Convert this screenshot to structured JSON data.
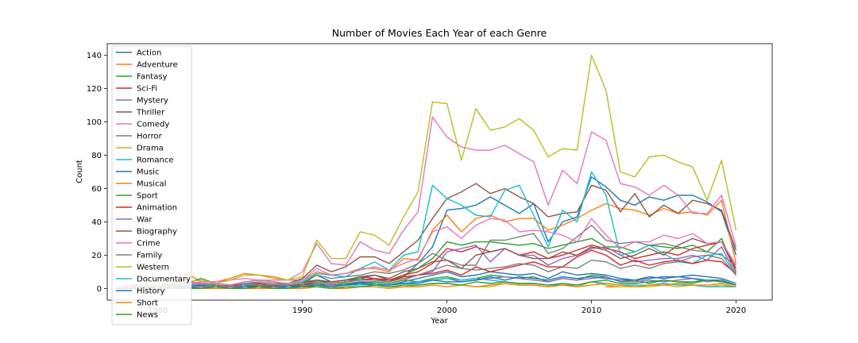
{
  "chart_data": {
    "type": "line",
    "title": "Number of Movies Each Year of each Genre",
    "xlabel": "Year",
    "ylabel": "Count",
    "xlim": [
      1976.5,
      2022.5
    ],
    "ylim": [
      -7,
      147
    ],
    "xticks": [
      1980,
      1990,
      2000,
      2010,
      2020
    ],
    "yticks": [
      0,
      20,
      40,
      60,
      80,
      100,
      120,
      140
    ],
    "legend_position": "top-left",
    "x": [
      1977,
      1978,
      1979,
      1980,
      1981,
      1982,
      1983,
      1984,
      1985,
      1986,
      1987,
      1988,
      1989,
      1990,
      1991,
      1992,
      1993,
      1994,
      1995,
      1996,
      1997,
      1998,
      1999,
      2000,
      2001,
      2002,
      2003,
      2004,
      2005,
      2006,
      2007,
      2008,
      2009,
      2010,
      2011,
      2012,
      2013,
      2014,
      2015,
      2016,
      2017,
      2018,
      2019,
      2020
    ],
    "series": [
      {
        "name": "Action",
        "color": "#1f77b4",
        "values": [
          0,
          1,
          1,
          1,
          1,
          3,
          2,
          2,
          1,
          2,
          3,
          2,
          2,
          3,
          8,
          4,
          5,
          6,
          8,
          5,
          7,
          15,
          25,
          47,
          48,
          50,
          55,
          50,
          45,
          51,
          28,
          40,
          43,
          67,
          61,
          53,
          50,
          55,
          53,
          56,
          56,
          52,
          46,
          20
        ]
      },
      {
        "name": "Adventure",
        "color": "#ff7f0e",
        "values": [
          0,
          2,
          1,
          2,
          2,
          9,
          4,
          4,
          6,
          9,
          8,
          7,
          5,
          5,
          10,
          8,
          9,
          12,
          12,
          10,
          18,
          17,
          35,
          44,
          34,
          42,
          44,
          40,
          42,
          42,
          35,
          38,
          42,
          47,
          51,
          48,
          47,
          44,
          48,
          45,
          46,
          44,
          53,
          15
        ]
      },
      {
        "name": "Fantasy",
        "color": "#2ca02c",
        "values": [
          0,
          0,
          1,
          2,
          1,
          3,
          6,
          3,
          2,
          3,
          3,
          2,
          3,
          4,
          5,
          3,
          4,
          6,
          5,
          4,
          8,
          12,
          18,
          28,
          26,
          28,
          28,
          27,
          26,
          27,
          24,
          26,
          28,
          30,
          25,
          25,
          22,
          26,
          25,
          24,
          26,
          22,
          30,
          10
        ]
      },
      {
        "name": "Sci-Fi",
        "color": "#d62728",
        "values": [
          0,
          1,
          0,
          1,
          1,
          2,
          3,
          2,
          1,
          2,
          3,
          2,
          2,
          3,
          5,
          4,
          5,
          7,
          6,
          5,
          8,
          10,
          15,
          24,
          22,
          25,
          22,
          24,
          20,
          22,
          18,
          20,
          23,
          26,
          24,
          22,
          18,
          20,
          22,
          20,
          24,
          26,
          28,
          12
        ]
      },
      {
        "name": "Mystery",
        "color": "#9467bd",
        "values": [
          0,
          0,
          0,
          1,
          1,
          2,
          1,
          2,
          1,
          2,
          2,
          1,
          2,
          2,
          3,
          2,
          3,
          4,
          4,
          3,
          5,
          8,
          10,
          22,
          24,
          26,
          16,
          24,
          20,
          20,
          14,
          18,
          20,
          24,
          25,
          20,
          16,
          17,
          18,
          18,
          20,
          17,
          25,
          8
        ]
      },
      {
        "name": "Thriller",
        "color": "#8c564b",
        "values": [
          0,
          1,
          1,
          2,
          2,
          4,
          3,
          3,
          2,
          4,
          5,
          4,
          3,
          6,
          14,
          10,
          13,
          19,
          19,
          15,
          22,
          29,
          42,
          54,
          58,
          63,
          57,
          60,
          55,
          51,
          43,
          45,
          46,
          62,
          59,
          46,
          57,
          43,
          50,
          45,
          53,
          51,
          47,
          23
        ]
      },
      {
        "name": "Comedy",
        "color": "#e377c2",
        "values": [
          0,
          2,
          2,
          2,
          2,
          3,
          4,
          4,
          5,
          6,
          5,
          5,
          5,
          10,
          27,
          15,
          14,
          28,
          23,
          21,
          35,
          46,
          103,
          91,
          85,
          83,
          83,
          86,
          81,
          76,
          50,
          71,
          63,
          94,
          89,
          63,
          61,
          56,
          62,
          56,
          45,
          45,
          56,
          25
        ]
      },
      {
        "name": "Horror",
        "color": "#7f7f7f",
        "values": [
          0,
          0,
          1,
          2,
          2,
          3,
          2,
          3,
          2,
          3,
          4,
          3,
          3,
          4,
          8,
          6,
          7,
          8,
          10,
          9,
          11,
          15,
          21,
          17,
          14,
          14,
          29,
          29,
          31,
          33,
          21,
          24,
          31,
          38,
          29,
          27,
          28,
          26,
          27,
          25,
          23,
          22,
          20,
          14
        ]
      },
      {
        "name": "Drama",
        "color": "#bcbd22",
        "values": [
          0,
          1,
          2,
          2,
          3,
          4,
          5,
          3,
          5,
          8,
          8,
          6,
          5,
          7,
          29,
          18,
          18,
          34,
          32,
          26,
          43,
          58,
          112,
          111,
          77,
          108,
          95,
          97,
          102,
          95,
          79,
          84,
          83,
          140,
          119,
          70,
          67,
          79,
          80,
          76,
          73,
          53,
          77,
          35
        ]
      },
      {
        "name": "Romance",
        "color": "#17becf",
        "values": [
          0,
          1,
          1,
          1,
          1,
          2,
          2,
          2,
          1,
          3,
          2,
          2,
          3,
          4,
          9,
          8,
          7,
          12,
          16,
          11,
          20,
          22,
          62,
          54,
          50,
          44,
          43,
          59,
          62,
          44,
          25,
          47,
          40,
          70,
          56,
          20,
          22,
          26,
          21,
          16,
          15,
          20,
          21,
          8
        ]
      },
      {
        "name": "Music",
        "color": "#1f77b4",
        "values": [
          0,
          0,
          1,
          0,
          1,
          1,
          2,
          1,
          1,
          1,
          2,
          1,
          2,
          1,
          3,
          2,
          2,
          4,
          3,
          2,
          4,
          6,
          8,
          10,
          7,
          8,
          10,
          9,
          8,
          9,
          6,
          10,
          8,
          9,
          8,
          6,
          5,
          7,
          6,
          7,
          8,
          7,
          6,
          3
        ]
      },
      {
        "name": "Musical",
        "color": "#ff7f0e",
        "values": [
          null,
          null,
          null,
          null,
          null,
          null,
          null,
          null,
          null,
          null,
          null,
          null,
          null,
          null,
          null,
          null,
          null,
          null,
          null,
          null,
          null,
          null,
          null,
          null,
          null,
          null,
          null,
          null,
          null,
          null,
          null,
          null,
          null,
          null,
          1,
          1,
          null,
          null,
          null,
          null,
          null,
          null,
          null,
          null
        ]
      },
      {
        "name": "Sport",
        "color": "#2ca02c",
        "values": [
          0,
          1,
          0,
          1,
          1,
          2,
          1,
          2,
          1,
          2,
          1,
          2,
          1,
          1,
          3,
          2,
          3,
          3,
          4,
          3,
          5,
          4,
          6,
          7,
          5,
          6,
          8,
          7,
          6,
          7,
          4,
          6,
          5,
          8,
          7,
          4,
          5,
          3,
          5,
          4,
          3,
          5,
          4,
          2
        ]
      },
      {
        "name": "Animation",
        "color": "#d62728",
        "values": [
          0,
          0,
          1,
          1,
          1,
          2,
          1,
          1,
          2,
          2,
          1,
          1,
          2,
          2,
          4,
          3,
          4,
          5,
          6,
          4,
          7,
          8,
          9,
          11,
          8,
          13,
          10,
          12,
          14,
          16,
          13,
          13,
          19,
          23,
          20,
          14,
          17,
          14,
          16,
          17,
          15,
          17,
          16,
          9
        ]
      },
      {
        "name": "War",
        "color": "#9467bd",
        "values": [
          0,
          0,
          0,
          1,
          0,
          1,
          1,
          1,
          1,
          1,
          1,
          1,
          1,
          1,
          2,
          2,
          2,
          3,
          3,
          2,
          3,
          4,
          5,
          6,
          4,
          5,
          6,
          7,
          6,
          5,
          4,
          6,
          5,
          6,
          7,
          4,
          4,
          5,
          4,
          5,
          6,
          4,
          5,
          2
        ]
      },
      {
        "name": "Biography",
        "color": "#8c564b",
        "values": [
          0,
          0,
          1,
          1,
          1,
          2,
          1,
          2,
          1,
          2,
          2,
          1,
          2,
          2,
          5,
          4,
          5,
          7,
          8,
          6,
          10,
          12,
          16,
          17,
          12,
          20,
          22,
          24,
          20,
          18,
          18,
          22,
          20,
          25,
          23,
          18,
          20,
          24,
          20,
          26,
          30,
          27,
          28,
          10
        ]
      },
      {
        "name": "Crime",
        "color": "#e377c2",
        "values": [
          0,
          1,
          1,
          1,
          2,
          3,
          3,
          3,
          2,
          4,
          5,
          4,
          3,
          5,
          12,
          8,
          9,
          11,
          13,
          11,
          15,
          18,
          34,
          37,
          30,
          38,
          42,
          41,
          34,
          35,
          34,
          32,
          28,
          42,
          32,
          24,
          28,
          28,
          32,
          30,
          33,
          27,
          28,
          14
        ]
      },
      {
        "name": "Family",
        "color": "#7f7f7f",
        "values": [
          0,
          0,
          1,
          1,
          1,
          2,
          1,
          2,
          1,
          2,
          2,
          2,
          2,
          3,
          4,
          3,
          4,
          5,
          5,
          4,
          6,
          8,
          11,
          14,
          12,
          11,
          12,
          13,
          15,
          14,
          10,
          13,
          12,
          17,
          16,
          12,
          14,
          12,
          15,
          16,
          19,
          20,
          18,
          8
        ]
      },
      {
        "name": "Western",
        "color": "#bcbd22",
        "values": [
          0,
          0,
          0,
          0,
          0,
          0,
          0,
          0,
          0,
          0,
          0,
          0,
          0,
          0,
          1,
          1,
          0,
          1,
          2,
          1,
          1,
          2,
          3,
          3,
          2,
          1,
          1,
          3,
          2,
          2,
          1,
          2,
          1,
          4,
          2,
          1,
          1,
          1,
          2,
          1,
          2,
          1,
          2,
          1
        ]
      },
      {
        "name": "Documentary",
        "color": "#17becf",
        "values": [
          0,
          0,
          0,
          0,
          0,
          1,
          0,
          1,
          0,
          1,
          1,
          0,
          1,
          1,
          2,
          1,
          2,
          2,
          3,
          2,
          3,
          4,
          5,
          6,
          5,
          6,
          5,
          4,
          3,
          3,
          2,
          2,
          2,
          4,
          3,
          2,
          2,
          2,
          3,
          2,
          2,
          1,
          1,
          1
        ]
      },
      {
        "name": "History",
        "color": "#1f77b4",
        "values": [
          0,
          0,
          0,
          0,
          0,
          1,
          0,
          1,
          0,
          1,
          1,
          0,
          1,
          1,
          2,
          1,
          2,
          3,
          2,
          2,
          3,
          3,
          5,
          4,
          4,
          5,
          7,
          5,
          7,
          6,
          5,
          7,
          6,
          7,
          6,
          5,
          5,
          6,
          7,
          7,
          6,
          5,
          5,
          2
        ]
      },
      {
        "name": "Short",
        "color": "#ff7f0e",
        "values": [
          0,
          0,
          0,
          0,
          0,
          0,
          0,
          0,
          0,
          0,
          0,
          0,
          0,
          0,
          1,
          0,
          0,
          1,
          1,
          0,
          1,
          1,
          2,
          1,
          2,
          1,
          2,
          3,
          2,
          2,
          1,
          2,
          1,
          2,
          3,
          2,
          1,
          2,
          2,
          3,
          2,
          2,
          3,
          1
        ]
      },
      {
        "name": "News",
        "color": "#2ca02c",
        "values": [
          0,
          0,
          0,
          0,
          0,
          0,
          0,
          1,
          0,
          0,
          1,
          0,
          0,
          1,
          1,
          0,
          1,
          1,
          2,
          1,
          2,
          2,
          3,
          3,
          2,
          4,
          3,
          4,
          3,
          3,
          2,
          3,
          2,
          4,
          5,
          3,
          3,
          4,
          5,
          4,
          4,
          5,
          4,
          2
        ]
      }
    ]
  }
}
